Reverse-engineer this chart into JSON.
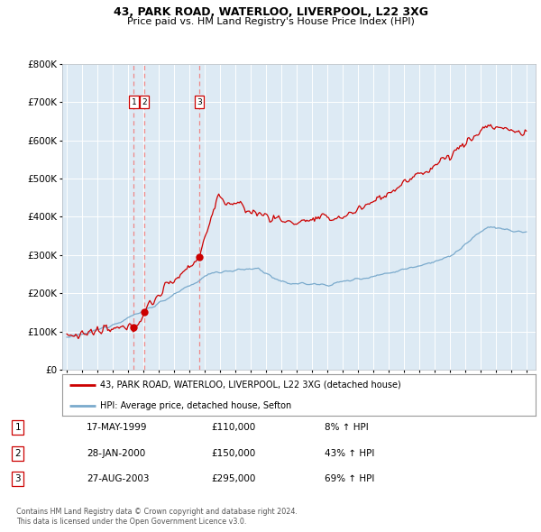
{
  "title": "43, PARK ROAD, WATERLOO, LIVERPOOL, L22 3XG",
  "subtitle": "Price paid vs. HM Land Registry's House Price Index (HPI)",
  "legend_line1": "43, PARK ROAD, WATERLOO, LIVERPOOL, L22 3XG (detached house)",
  "legend_line2": "HPI: Average price, detached house, Sefton",
  "footer_line1": "Contains HM Land Registry data © Crown copyright and database right 2024.",
  "footer_line2": "This data is licensed under the Open Government Licence v3.0.",
  "transactions": [
    {
      "num": 1,
      "date": "17-MAY-1999",
      "price": 110000,
      "hpi_pct": "8% ↑ HPI",
      "year": 1999.375
    },
    {
      "num": 2,
      "date": "28-JAN-2000",
      "price": 150000,
      "hpi_pct": "43% ↑ HPI",
      "year": 2000.075
    },
    {
      "num": 3,
      "date": "27-AUG-2003",
      "price": 295000,
      "hpi_pct": "69% ↑ HPI",
      "year": 2003.65
    }
  ],
  "red_line_color": "#cc0000",
  "blue_line_color": "#7aaacc",
  "bg_color": "#ddeaf4",
  "grid_color": "#ffffff",
  "vline_color": "#ee8888",
  "box_edge_color": "#cc0000",
  "ylim": [
    0,
    800000
  ],
  "yticks": [
    0,
    100000,
    200000,
    300000,
    400000,
    500000,
    600000,
    700000,
    800000
  ],
  "xlim_start": 1994.7,
  "xlim_end": 2025.6
}
